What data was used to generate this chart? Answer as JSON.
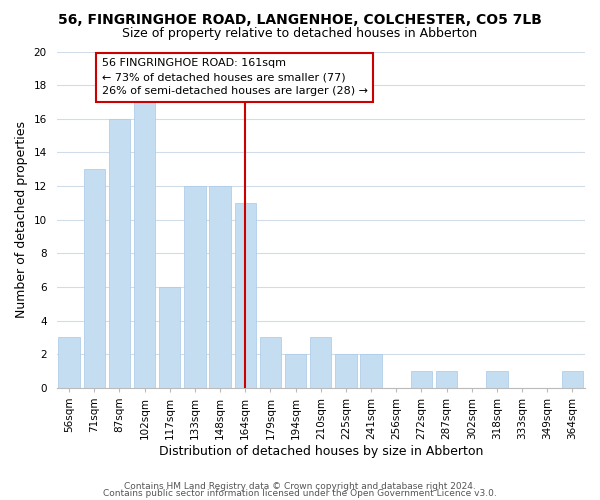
{
  "title": "56, FINGRINGHOE ROAD, LANGENHOE, COLCHESTER, CO5 7LB",
  "subtitle": "Size of property relative to detached houses in Abberton",
  "xlabel": "Distribution of detached houses by size in Abberton",
  "ylabel": "Number of detached properties",
  "bar_labels": [
    "56sqm",
    "71sqm",
    "87sqm",
    "102sqm",
    "117sqm",
    "133sqm",
    "148sqm",
    "164sqm",
    "179sqm",
    "194sqm",
    "210sqm",
    "225sqm",
    "241sqm",
    "256sqm",
    "272sqm",
    "287sqm",
    "302sqm",
    "318sqm",
    "333sqm",
    "349sqm",
    "364sqm"
  ],
  "bar_values": [
    3,
    13,
    16,
    17,
    6,
    12,
    12,
    11,
    3,
    2,
    3,
    2,
    2,
    0,
    1,
    1,
    0,
    1,
    0,
    0,
    1
  ],
  "vline_index": 7,
  "vline_color": "#cc0000",
  "bar_color": "#c5ddf0",
  "bar_edge_color": "#a8c8e8",
  "annotation_line1": "56 FINGRINGHOE ROAD: 161sqm",
  "annotation_line2": "← 73% of detached houses are smaller (77)",
  "annotation_line3": "26% of semi-detached houses are larger (28) →",
  "annotation_box_color": "#ffffff",
  "annotation_box_edge": "#cc0000",
  "ylim": [
    0,
    20
  ],
  "yticks": [
    0,
    2,
    4,
    6,
    8,
    10,
    12,
    14,
    16,
    18,
    20
  ],
  "footer1": "Contains HM Land Registry data © Crown copyright and database right 2024.",
  "footer2": "Contains public sector information licensed under the Open Government Licence v3.0.",
  "background_color": "#ffffff",
  "grid_color": "#d0dce8",
  "title_fontsize": 10,
  "subtitle_fontsize": 9,
  "axis_label_fontsize": 9,
  "tick_fontsize": 7.5,
  "annotation_fontsize": 8,
  "footer_fontsize": 6.5
}
